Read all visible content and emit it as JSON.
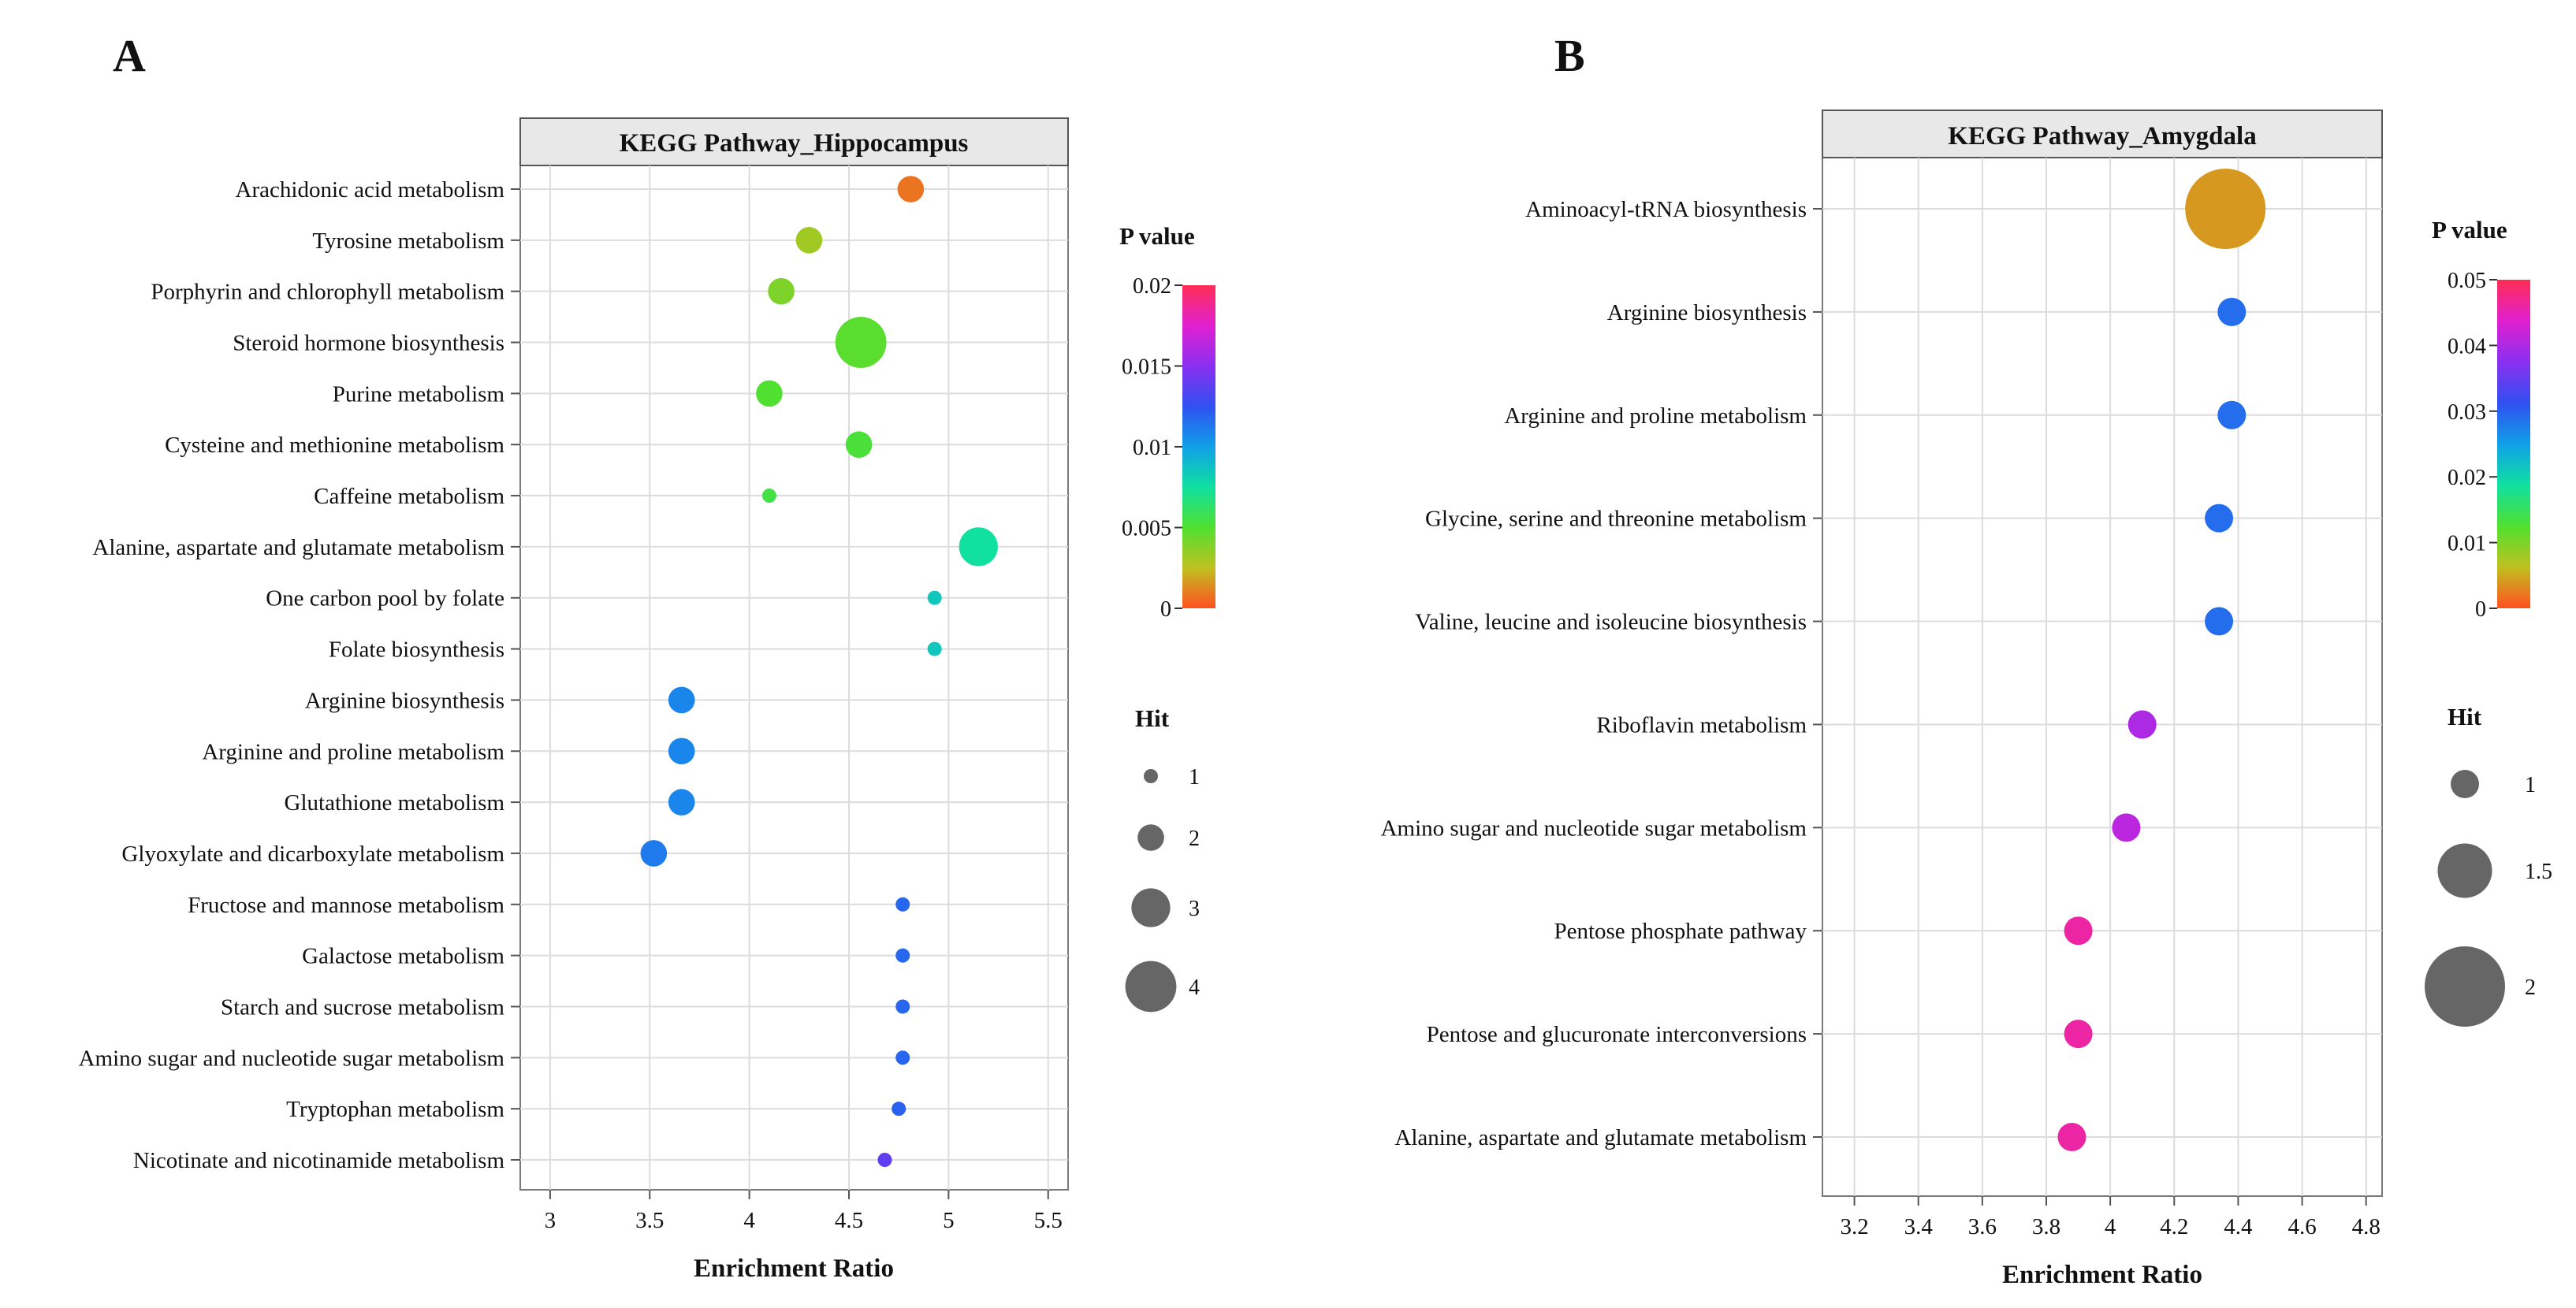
{
  "panels": [
    "A",
    "B"
  ],
  "chart_data": [
    {
      "type": "scatter",
      "panel_label": "A",
      "title": "KEGG Pathway_Hippocampus",
      "xlabel": "Enrichment Ratio",
      "ylabel": "",
      "xlim": [
        2.85,
        5.6
      ],
      "xticks": [
        3,
        3.5,
        4,
        4.5,
        5,
        5.5
      ],
      "xtick_labels": [
        "3",
        "3.5",
        "4",
        "4.5",
        "5",
        "5.5"
      ],
      "grid": true,
      "pathways": [
        {
          "name": "Arachidonic acid metabolism",
          "x": 4.81,
          "hit": 2,
          "p": 0.0008
        },
        {
          "name": "Tyrosine metabolism",
          "x": 4.3,
          "hit": 2,
          "p": 0.0032
        },
        {
          "name": "Porphyrin and chlorophyll metabolism",
          "x": 4.16,
          "hit": 2,
          "p": 0.004
        },
        {
          "name": "Steroid hormone biosynthesis",
          "x": 4.56,
          "hit": 4,
          "p": 0.0048
        },
        {
          "name": "Purine metabolism",
          "x": 4.1,
          "hit": 2,
          "p": 0.005
        },
        {
          "name": "Cysteine and methionine metabolism",
          "x": 4.55,
          "hit": 2,
          "p": 0.0052
        },
        {
          "name": "Caffeine metabolism",
          "x": 4.1,
          "hit": 1,
          "p": 0.0055
        },
        {
          "name": "Alanine, aspartate and glutamate metabolism",
          "x": 5.15,
          "hit": 3,
          "p": 0.0075
        },
        {
          "name": "One carbon pool by folate",
          "x": 4.93,
          "hit": 1,
          "p": 0.0085
        },
        {
          "name": "Folate biosynthesis",
          "x": 4.93,
          "hit": 1,
          "p": 0.0085
        },
        {
          "name": "Arginine biosynthesis",
          "x": 3.66,
          "hit": 2,
          "p": 0.0108
        },
        {
          "name": "Arginine and proline metabolism",
          "x": 3.66,
          "hit": 2,
          "p": 0.0108
        },
        {
          "name": "Glutathione metabolism",
          "x": 3.66,
          "hit": 2,
          "p": 0.0108
        },
        {
          "name": "Glyoxylate and dicarboxylate metabolism",
          "x": 3.52,
          "hit": 2,
          "p": 0.0112
        },
        {
          "name": "Fructose and mannose metabolism",
          "x": 4.77,
          "hit": 1,
          "p": 0.0118
        },
        {
          "name": "Galactose metabolism",
          "x": 4.77,
          "hit": 1,
          "p": 0.0118
        },
        {
          "name": "Starch and sucrose metabolism",
          "x": 4.77,
          "hit": 1,
          "p": 0.0118
        },
        {
          "name": "Amino sugar and nucleotide sugar metabolism",
          "x": 4.77,
          "hit": 1,
          "p": 0.0118
        },
        {
          "name": "Tryptophan metabolism",
          "x": 4.75,
          "hit": 1,
          "p": 0.012
        },
        {
          "name": "Nicotinate and nicotinamide metabolism",
          "x": 4.68,
          "hit": 1,
          "p": 0.0138
        }
      ],
      "color_legend": {
        "title": "P value",
        "min": 0,
        "max": 0.02,
        "ticks": [
          "0.02",
          "0.015",
          "0.01",
          "0.005",
          "0"
        ]
      },
      "size_legend": {
        "title": "Hit",
        "values": [
          1,
          2,
          3,
          4
        ],
        "labels": [
          "1",
          "2",
          "3",
          "4"
        ]
      }
    },
    {
      "type": "scatter",
      "panel_label": "B",
      "title": "KEGG Pathway_Amygdala",
      "xlabel": "Enrichment Ratio",
      "ylabel": "",
      "xlim": [
        3.1,
        4.85
      ],
      "xticks": [
        3.2,
        3.4,
        3.6,
        3.8,
        4,
        4.2,
        4.4,
        4.6,
        4.8
      ],
      "xtick_labels": [
        "3.2",
        "3.4",
        "3.6",
        "3.8",
        "4",
        "4.2",
        "4.4",
        "4.6",
        "4.8"
      ],
      "grid": true,
      "pathways": [
        {
          "name": "Aminoacyl-tRNA biosynthesis",
          "x": 4.36,
          "hit": 2,
          "p": 0.004
        },
        {
          "name": "Arginine biosynthesis",
          "x": 4.38,
          "hit": 1,
          "p": 0.029
        },
        {
          "name": "Arginine and proline metabolism",
          "x": 4.38,
          "hit": 1,
          "p": 0.029
        },
        {
          "name": "Glycine, serine and threonine metabolism",
          "x": 4.34,
          "hit": 1,
          "p": 0.029
        },
        {
          "name": "Valine, leucine and isoleucine biosynthesis",
          "x": 4.34,
          "hit": 1,
          "p": 0.029
        },
        {
          "name": "Riboflavin metabolism",
          "x": 4.1,
          "hit": 1,
          "p": 0.04
        },
        {
          "name": "Amino sugar and nucleotide sugar metabolism",
          "x": 4.05,
          "hit": 1,
          "p": 0.041
        },
        {
          "name": "Pentose phosphate pathway",
          "x": 3.9,
          "hit": 1,
          "p": 0.046
        },
        {
          "name": "Pentose and glucuronate interconversions",
          "x": 3.9,
          "hit": 1,
          "p": 0.046
        },
        {
          "name": "Alanine, aspartate and glutamate metabolism",
          "x": 3.88,
          "hit": 1,
          "p": 0.046
        }
      ],
      "color_legend": {
        "title": "P value",
        "min": 0,
        "max": 0.05,
        "ticks": [
          "0.05",
          "0.04",
          "0.03",
          "0.02",
          "0.01",
          "0"
        ]
      },
      "size_legend": {
        "title": "Hit",
        "values": [
          1,
          1.5,
          2
        ],
        "labels": [
          "1",
          "1.5",
          "2"
        ]
      }
    }
  ],
  "colors": {
    "gradient_stops": [
      "#ff2d55",
      "#e020d0",
      "#8a30f0",
      "#3050f0",
      "#10a0e8",
      "#10e0a0",
      "#50e030",
      "#c0c020",
      "#ff5020"
    ],
    "grid": "#dcdcdc",
    "axis": "#7a7a7a",
    "strip": "#e8e8e8",
    "legend_circle": "#666666"
  }
}
